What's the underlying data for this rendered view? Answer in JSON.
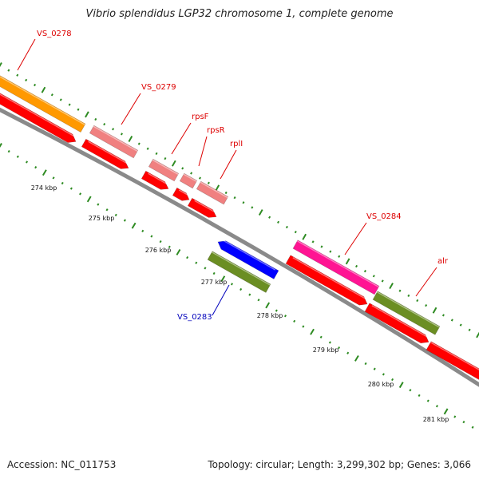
{
  "title": "Vibrio splendidus LGP32 chromosome 1, complete genome",
  "footer": {
    "accession": "Accession: NC_011753",
    "stats": "Topology: circular; Length: 3,299,302 bp; Genes: 3,066"
  },
  "colors": {
    "backbone": "#8a8a8a",
    "tick": "#2e8b22",
    "label_forward": "#dd0000",
    "label_reverse": "#0000bb",
    "cds": "#ff0000",
    "orange_gene": "#ff9900",
    "pink_gene": "#f08080",
    "magenta_gene": "#ff1493",
    "olive_gene": "#6b8e23",
    "blue_gene": "#0000ff"
  },
  "kbp_labels": [
    "274 kbp",
    "275 kbp",
    "276 kbp",
    "277 kbp",
    "278 kbp",
    "279 kbp",
    "280 kbp",
    "281 kbp"
  ],
  "genes": [
    {
      "name": "VS_0278",
      "color": "orange_gene",
      "labeled": true,
      "strand": "forward"
    },
    {
      "name": "VS_0279",
      "color": "pink_gene",
      "labeled": true,
      "strand": "forward"
    },
    {
      "name": "rpsF",
      "color": "pink_gene",
      "labeled": true,
      "strand": "forward"
    },
    {
      "name": "rpsR",
      "color": "pink_gene",
      "labeled": true,
      "strand": "forward"
    },
    {
      "name": "rplI",
      "color": "pink_gene",
      "labeled": true,
      "strand": "forward"
    },
    {
      "name": "VS_0283",
      "color": "olive_gene",
      "labeled": true,
      "strand": "reverse"
    },
    {
      "name": "VS_0284",
      "color": "magenta_gene",
      "labeled": true,
      "strand": "forward"
    },
    {
      "name": "alr",
      "color": "olive_gene",
      "labeled": true,
      "strand": "forward"
    }
  ]
}
